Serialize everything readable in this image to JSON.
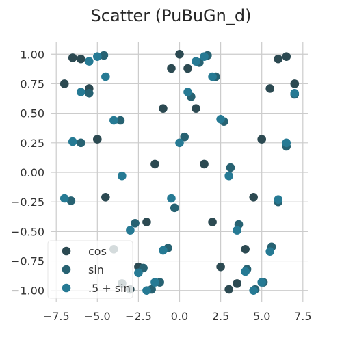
{
  "chart_data": {
    "type": "scatter",
    "title": "Scatter (PuBuGn_d)",
    "xlabel": "",
    "ylabel": "",
    "xlim": [
      -7.8,
      7.8
    ],
    "ylim": [
      -1.1,
      1.1
    ],
    "x_ticks": [
      -7.5,
      -5.0,
      -2.5,
      0.0,
      2.5,
      5.0,
      7.5
    ],
    "x_tick_labels": [
      "−7.5",
      "−5.0",
      "−2.5",
      "0.0",
      "2.5",
      "5.0",
      "7.5"
    ],
    "y_ticks": [
      -1.0,
      -0.75,
      -0.5,
      -0.25,
      0.0,
      0.25,
      0.5,
      0.75,
      1.0
    ],
    "y_tick_labels": [
      "−1.00",
      "−0.75",
      "−0.50",
      "−0.25",
      "0.00",
      "0.25",
      "0.50",
      "0.75",
      "1.00"
    ],
    "grid": true,
    "legend_position": "lower-left",
    "series": [
      {
        "name": "cos",
        "color": "#2c4a52",
        "x": [
          -7.0,
          -6.5,
          -6.0,
          -5.5,
          -5.0,
          -4.5,
          -4.0,
          -3.5,
          -3.0,
          -2.5,
          -2.0,
          -1.5,
          -1.0,
          -0.5,
          0.0,
          0.5,
          1.0,
          1.5,
          2.0,
          2.5,
          3.0,
          3.5,
          4.0,
          4.5,
          5.0,
          5.5,
          6.0,
          6.5,
          7.0
        ],
        "y": [
          0.75,
          0.97,
          0.96,
          0.71,
          0.28,
          -0.21,
          -0.65,
          -0.94,
          -0.99,
          -0.8,
          -0.42,
          0.07,
          0.54,
          0.88,
          1.0,
          0.88,
          0.54,
          0.07,
          -0.42,
          -0.8,
          -0.99,
          -0.94,
          -0.65,
          -0.21,
          0.28,
          0.71,
          0.96,
          0.98,
          0.75
        ]
      },
      {
        "name": "sin",
        "color": "#276272",
        "x": [
          -6.6,
          -6.0,
          -5.5,
          -4.6,
          -3.6,
          -2.7,
          -2.2,
          -1.7,
          -1.2,
          -0.7,
          -0.3,
          0.3,
          0.7,
          1.2,
          1.7,
          2.2,
          2.7,
          3.1,
          3.6,
          4.1,
          4.6,
          5.1,
          5.6,
          6.0,
          6.5,
          7.0
        ],
        "y": [
          -0.24,
          0.25,
          0.67,
          0.99,
          0.44,
          -0.43,
          -0.81,
          -0.99,
          -0.93,
          -0.64,
          -0.3,
          0.3,
          0.64,
          0.93,
          0.99,
          0.81,
          0.43,
          0.04,
          -0.44,
          -0.82,
          -0.99,
          -0.93,
          -0.63,
          -0.25,
          0.22,
          0.66
        ]
      },
      {
        "name": ".5 + sin",
        "color": "#267a94",
        "x": [
          -7.0,
          -6.5,
          -6.0,
          -5.5,
          -5.0,
          -4.5,
          -4.0,
          -3.5,
          -3.0,
          -2.5,
          -2.0,
          -1.5,
          -1.0,
          -0.5,
          0.0,
          0.5,
          1.0,
          1.5,
          2.0,
          2.5,
          3.0,
          3.5,
          4.0,
          4.5,
          5.0,
          5.5,
          6.0,
          6.5,
          7.0
        ],
        "y": [
          -0.22,
          0.26,
          0.68,
          0.94,
          0.98,
          0.81,
          0.44,
          -0.03,
          -0.49,
          -0.85,
          -1.0,
          -0.93,
          -0.66,
          -0.22,
          0.25,
          0.68,
          0.94,
          0.98,
          0.81,
          0.45,
          -0.03,
          -0.49,
          -0.84,
          -1.0,
          -0.93,
          -0.67,
          -0.23,
          0.25,
          0.67
        ]
      }
    ]
  }
}
